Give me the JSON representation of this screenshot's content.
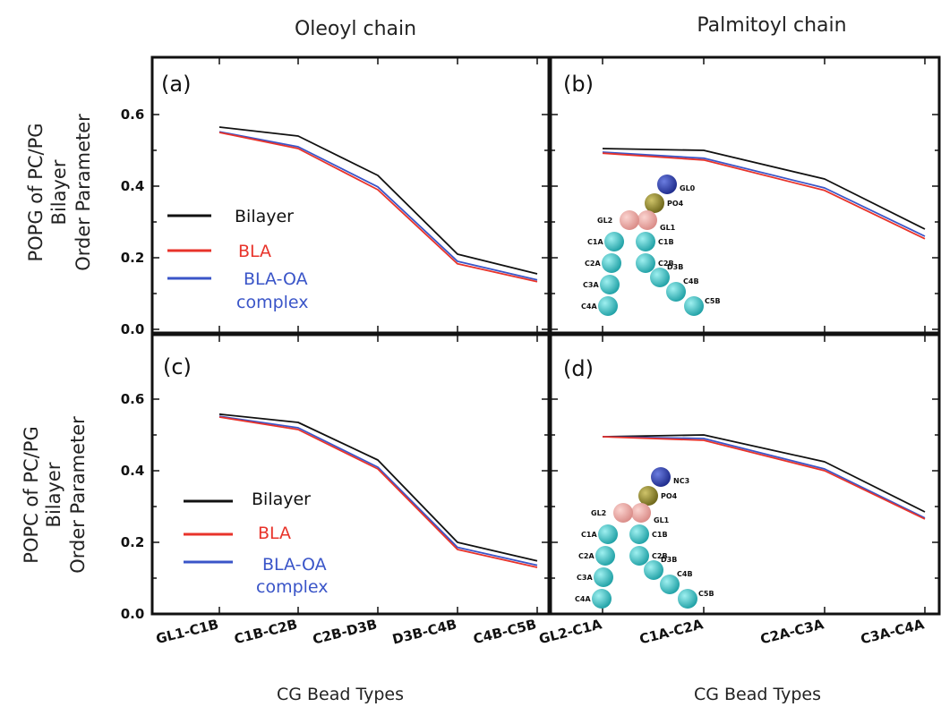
{
  "figure": {
    "col_titles": [
      "Oleoyl chain",
      "Palmitoyl chain"
    ],
    "x_axis_label": "CG Bead Types",
    "row_ylabels": [
      {
        "line1": "POPG of PC/PG",
        "line2": "Bilayer",
        "line3": "Order Parameter"
      },
      {
        "line1": "POPC of PC/PG",
        "line2": "Bilayer",
        "line3": "Order Parameter"
      }
    ],
    "colors": {
      "Bilayer": "#111111",
      "BLA": "#e8332a",
      "BLA-OA complex": "#3a55c8"
    }
  },
  "legend": {
    "bilayer": "Bilayer",
    "bla": "BLA",
    "blaoa_line1": "BLA-OA",
    "blaoa_line2": "complex"
  },
  "molecule_top": {
    "labels": [
      "GL0",
      "PO4",
      "GL2",
      "GL1",
      "C1A",
      "C1B",
      "C2A",
      "C2B",
      "D3B",
      "C3A",
      "C4B",
      "C4A",
      "C5B"
    ]
  },
  "molecule_bottom": {
    "labels": [
      "NC3",
      "PO4",
      "GL2",
      "GL1",
      "C1A",
      "C1B",
      "C2A",
      "C2B",
      "D3B",
      "C3A",
      "C4B",
      "C4A",
      "C5B"
    ]
  },
  "chart_data": [
    {
      "type": "line",
      "panel_label": "(a)",
      "categories": [
        "GL1-C1B",
        "C1B-C2B",
        "C2B-D3B",
        "D3B-C4B",
        "C4B-C5B"
      ],
      "ylim": [
        0.0,
        0.7
      ],
      "yticks": [
        "0.0",
        "0.2",
        "0.4",
        "0.6"
      ],
      "series": [
        {
          "name": "Bilayer",
          "values": [
            0.565,
            0.54,
            0.43,
            0.21,
            0.155
          ]
        },
        {
          "name": "BLA",
          "values": [
            0.55,
            0.505,
            0.39,
            0.183,
            0.133
          ]
        },
        {
          "name": "BLA-OA complex",
          "values": [
            0.552,
            0.51,
            0.398,
            0.19,
            0.138
          ]
        }
      ]
    },
    {
      "type": "line",
      "panel_label": "(b)",
      "categories": [
        "GL2-C1A",
        "C1A-C2A",
        "C2A-C3A",
        "C3A-C4A"
      ],
      "ylim": [
        0.0,
        0.7
      ],
      "series": [
        {
          "name": "Bilayer",
          "values": [
            0.505,
            0.5,
            0.42,
            0.28
          ]
        },
        {
          "name": "BLA",
          "values": [
            0.492,
            0.473,
            0.388,
            0.253
          ]
        },
        {
          "name": "BLA-OA complex",
          "values": [
            0.495,
            0.478,
            0.395,
            0.26
          ]
        }
      ]
    },
    {
      "type": "line",
      "panel_label": "(c)",
      "categories": [
        "GL1-C1B",
        "C1B-C2B",
        "C2B-D3B",
        "D3B-C4B",
        "C4B-C5B"
      ],
      "ylim": [
        0.0,
        0.7
      ],
      "yticks": [
        "0.0",
        "0.2",
        "0.4",
        "0.6"
      ],
      "series": [
        {
          "name": "Bilayer",
          "values": [
            0.558,
            0.535,
            0.43,
            0.2,
            0.148
          ]
        },
        {
          "name": "BLA",
          "values": [
            0.55,
            0.515,
            0.405,
            0.18,
            0.13
          ]
        },
        {
          "name": "BLA-OA complex",
          "values": [
            0.552,
            0.52,
            0.41,
            0.186,
            0.136
          ]
        }
      ]
    },
    {
      "type": "line",
      "panel_label": "(d)",
      "categories": [
        "GL2-C1A",
        "C1A-C2A",
        "C2A-C3A",
        "C3A-C4A"
      ],
      "ylim": [
        0.0,
        0.7
      ],
      "series": [
        {
          "name": "Bilayer",
          "values": [
            0.495,
            0.5,
            0.425,
            0.285
          ]
        },
        {
          "name": "BLA",
          "values": [
            0.495,
            0.485,
            0.4,
            0.265
          ]
        },
        {
          "name": "BLA-OA complex",
          "values": [
            0.495,
            0.49,
            0.405,
            0.268
          ]
        }
      ]
    }
  ]
}
